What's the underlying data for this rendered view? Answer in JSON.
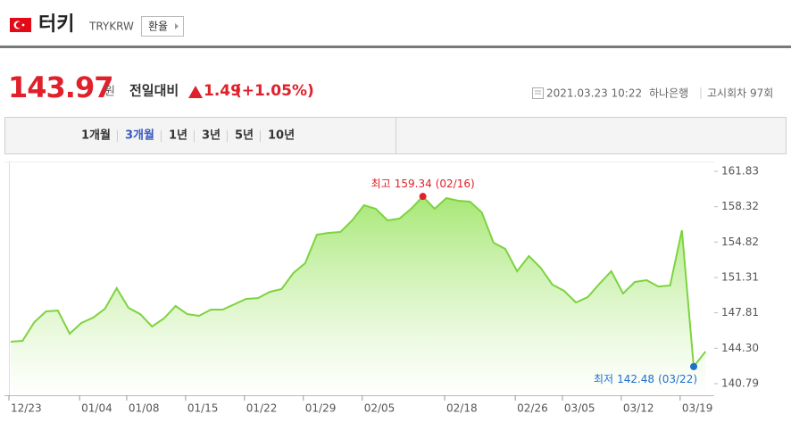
{
  "header": {
    "title": "터키",
    "code": "TRYKRW",
    "button": "환율"
  },
  "quote": {
    "price": "143.97",
    "unit": "원",
    "change_label": "전일대비",
    "change": "1.49",
    "change_pct": "(+1.05%)",
    "datetime": "2021.03.23 10:22",
    "bank": "하나은행",
    "round": "고시회차 97회"
  },
  "tabs": {
    "items": [
      "1개월",
      "3개월",
      "1년",
      "3년",
      "5년",
      "10년"
    ],
    "active_index": 1
  },
  "chart_data": {
    "type": "line",
    "categories": [
      "12/23",
      null,
      null,
      null,
      null,
      null,
      "01/04",
      null,
      null,
      null,
      "01/08",
      null,
      null,
      null,
      null,
      "01/15",
      null,
      null,
      null,
      null,
      "01/22",
      null,
      null,
      null,
      null,
      "01/29",
      null,
      null,
      null,
      null,
      "02/05",
      null,
      null,
      null,
      null,
      null,
      null,
      "02/18",
      null,
      null,
      null,
      null,
      null,
      "02/26",
      null,
      null,
      null,
      "03/05",
      null,
      null,
      null,
      null,
      "03/12",
      null,
      null,
      null,
      null,
      "03/19",
      null,
      null
    ],
    "series": [
      {
        "name": "TRYKRW",
        "color": "#7dd33f",
        "values": [
          144.94,
          145.03,
          146.88,
          147.95,
          148.04,
          145.74,
          146.8,
          147.33,
          148.21,
          150.25,
          148.3,
          147.68,
          146.45,
          147.24,
          148.48,
          147.68,
          147.51,
          148.13,
          148.13,
          148.66,
          149.19,
          149.27,
          149.89,
          150.16,
          151.75,
          152.72,
          155.55,
          155.73,
          155.82,
          156.97,
          158.47,
          158.12,
          156.97,
          157.14,
          158.12,
          159.34,
          158.12,
          159.18,
          158.91,
          158.82,
          157.76,
          154.76,
          154.14,
          151.93,
          153.43,
          152.28,
          150.6,
          149.98,
          148.83,
          149.36,
          150.69,
          151.93,
          149.72,
          150.87,
          151.04,
          150.42,
          150.51,
          155.99,
          142.48,
          143.97
        ]
      }
    ],
    "ylim": [
      139.64,
      162.89
    ],
    "yticks": [
      140.79,
      {
        "value": 144.3,
        "label": "144.30"
      },
      147.81,
      151.31,
      154.82,
      158.32,
      161.83
    ],
    "grid": false,
    "annotations": [
      {
        "label": "최고",
        "value": 159.34,
        "date": "(02/16)",
        "color": "#e0202a"
      },
      {
        "label": "최저",
        "value": 142.48,
        "date": "(03/22)",
        "color": "#1f6fcf"
      }
    ]
  }
}
